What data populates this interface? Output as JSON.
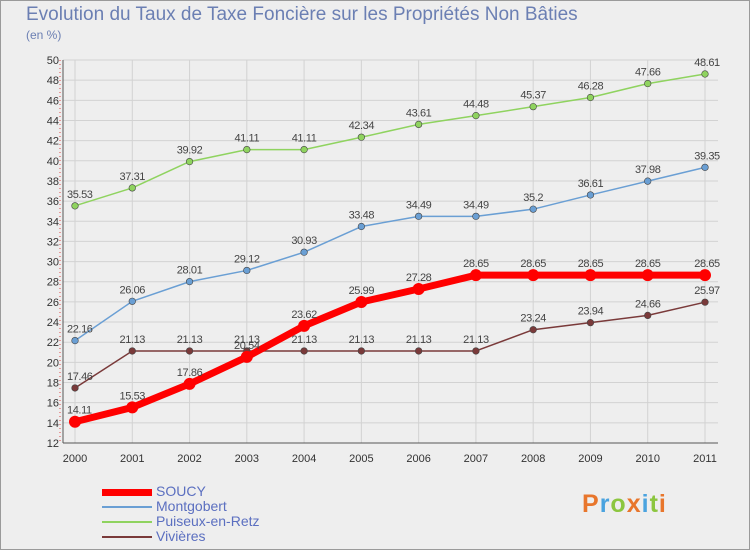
{
  "chart": {
    "title": "Evolution du Taux de Taxe Foncière sur les Propriétés Non Bâties",
    "subtitle": "(en %)"
  },
  "logo": {
    "text": "Proxiti",
    "colors": [
      "#e8762c",
      "#4aa3df",
      "#8cc63f",
      "#e8762c",
      "#4aa3df",
      "#8cc63f",
      "#e8762c"
    ]
  },
  "chart_data": {
    "type": "line",
    "title": "Evolution du Taux de Taxe Foncière sur les Propriétés Non Bâties",
    "ylabel": "(en %)",
    "xlabel": "",
    "x": [
      "2000",
      "2001",
      "2002",
      "2003",
      "2004",
      "2005",
      "2006",
      "2007",
      "2008",
      "2009",
      "2010",
      "2011"
    ],
    "ylim": [
      12,
      50
    ],
    "yticks": [
      12,
      14,
      16,
      18,
      20,
      22,
      24,
      26,
      28,
      30,
      32,
      34,
      36,
      38,
      40,
      42,
      44,
      46,
      48,
      50
    ],
    "grid": true,
    "legend": "bottom-left",
    "series": [
      {
        "name": "SOUCY",
        "color": "#ff0000",
        "values": [
          14.11,
          15.53,
          17.86,
          20.54,
          23.62,
          25.99,
          27.28,
          28.65,
          28.65,
          28.65,
          28.65,
          28.65
        ]
      },
      {
        "name": "Montgobert",
        "color": "#6a9fd4",
        "values": [
          22.16,
          26.06,
          28.01,
          29.12,
          30.93,
          33.48,
          34.49,
          34.49,
          35.2,
          36.61,
          37.98,
          39.35
        ]
      },
      {
        "name": "Puiseux-en-Retz",
        "color": "#8fd35f",
        "values": [
          35.53,
          37.31,
          39.92,
          41.11,
          41.11,
          42.34,
          43.61,
          44.48,
          45.37,
          46.28,
          47.66,
          48.61
        ]
      },
      {
        "name": "Vivières",
        "color": "#7a3a3a",
        "values": [
          17.46,
          21.13,
          21.13,
          21.13,
          21.13,
          21.13,
          21.13,
          21.13,
          23.24,
          23.94,
          24.66,
          25.97
        ]
      }
    ]
  }
}
